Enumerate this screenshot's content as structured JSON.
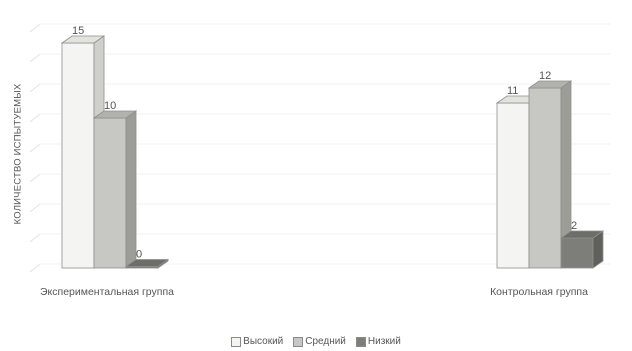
{
  "chart_data": {
    "type": "bar",
    "title": "",
    "xlabel": "",
    "ylabel": "КОЛИЧЕСТВО ИСПЫТУЕМЫХ",
    "ylim": [
      0,
      16
    ],
    "grid": "horizontal",
    "legend_position": "bottom",
    "categories": [
      "Экспериментальная группа",
      "Контрольная группа"
    ],
    "series": [
      {
        "name": "Высокий",
        "values": [
          15,
          11
        ],
        "color": "#f4f4f2",
        "side": "#cfcfcc",
        "top": "#e2e2de"
      },
      {
        "name": "Средний",
        "values": [
          10,
          12
        ],
        "color": "#c7c7c3",
        "side": "#9c9c98",
        "top": "#b1b1ad"
      },
      {
        "name": "Низкий",
        "values": [
          0,
          2
        ],
        "color": "#7d7d79",
        "side": "#5f5f5b",
        "top": "#6d6d69"
      }
    ]
  }
}
